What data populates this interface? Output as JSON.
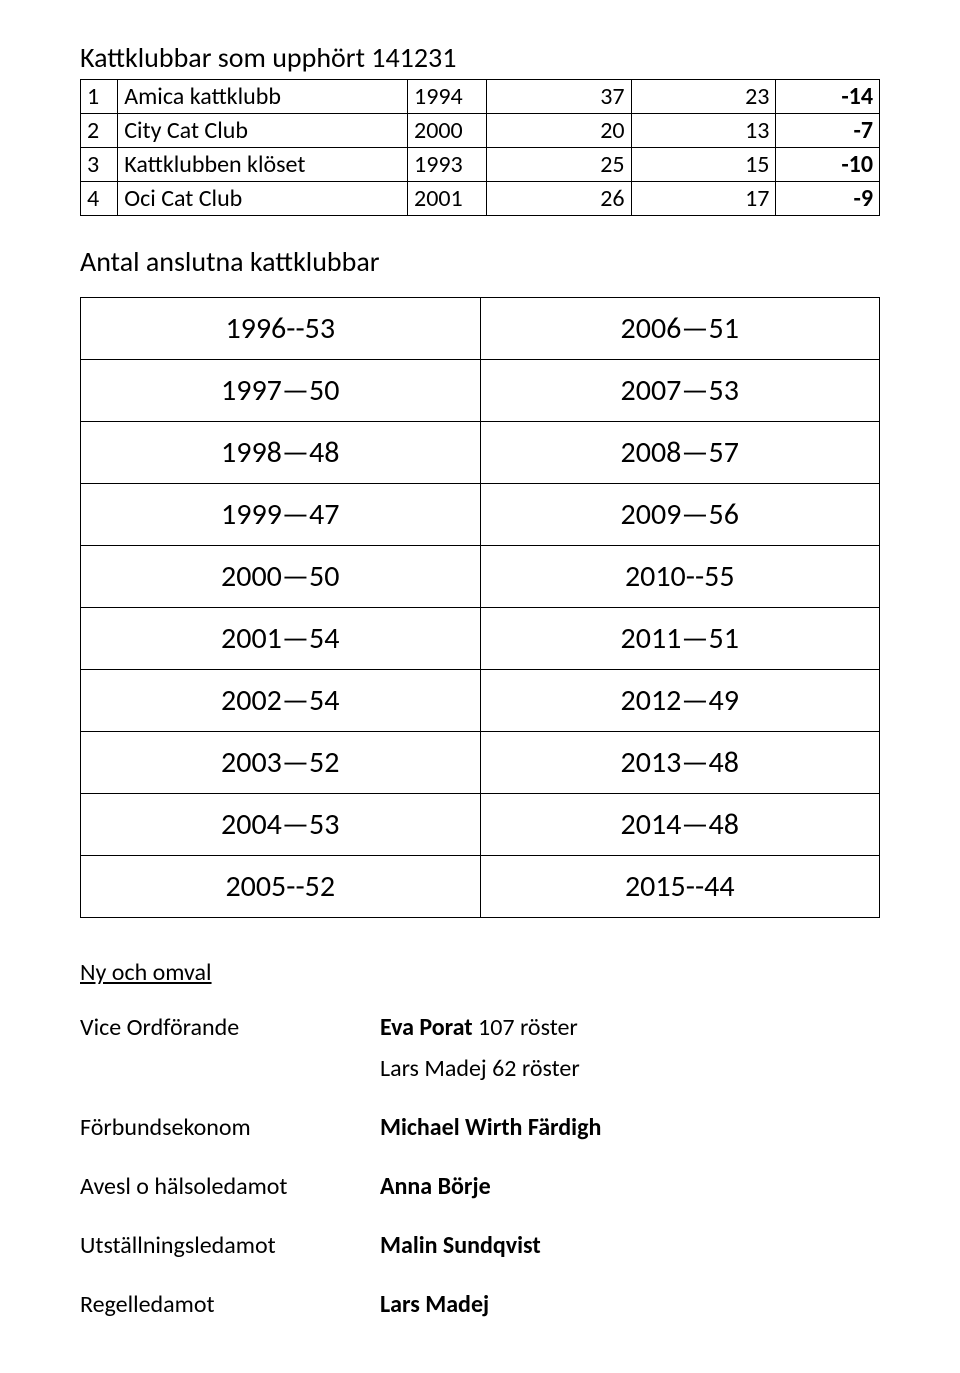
{
  "title": "Kattklubbar som upphört 141231",
  "discontinued": {
    "rows": [
      {
        "num": "1",
        "name": "Amica kattklubb",
        "year": "1994",
        "a": "37",
        "b": "23",
        "diff": "-14"
      },
      {
        "num": "2",
        "name": "City Cat Club",
        "year": "2000",
        "a": "20",
        "b": "13",
        "diff": "-7"
      },
      {
        "num": "3",
        "name": "Kattklubben klöset",
        "year": "1993",
        "a": "25",
        "b": "15",
        "diff": "-10"
      },
      {
        "num": "4",
        "name": "Oci Cat Club",
        "year": "2001",
        "a": "26",
        "b": "17",
        "diff": "-9"
      }
    ]
  },
  "subtitle": "Antal anslutna kattklubbar",
  "year_pairs": [
    {
      "left": "1996--53",
      "right": "2006—51"
    },
    {
      "left": "1997—50",
      "right": "2007—53"
    },
    {
      "left": "1998—48",
      "right": "2008—57"
    },
    {
      "left": "1999—47",
      "right": "2009—56"
    },
    {
      "left": "2000—50",
      "right": "2010--55"
    },
    {
      "left": "2001—54",
      "right": "2011—51"
    },
    {
      "left": "2002—54",
      "right": "2012—49"
    },
    {
      "left": "2003—52",
      "right": "2013—48"
    },
    {
      "left": "2004—53",
      "right": "2014—48"
    },
    {
      "left": "2005--52",
      "right": "2015--44"
    }
  ],
  "ny_och_omval": {
    "header": "Ny och omval",
    "roles": [
      {
        "role": "Vice Ordförande",
        "lines": [
          {
            "bold_part": "Eva Porat",
            "rest": " 107 röster"
          },
          {
            "bold_part": "",
            "rest": "Lars Madej 62 röster"
          }
        ]
      },
      {
        "role": "Förbundsekonom",
        "lines": [
          {
            "bold_part": "Michael Wirth Färdigh",
            "rest": ""
          }
        ]
      },
      {
        "role": "Avesl o hälsoledamot",
        "lines": [
          {
            "bold_part": "Anna Börje",
            "rest": ""
          }
        ]
      },
      {
        "role": "Utställningsledamot",
        "lines": [
          {
            "bold_part": "Malin Sundqvist",
            "rest": ""
          }
        ]
      },
      {
        "role": "Regelledamot",
        "lines": [
          {
            "bold_part": "Lars Madej",
            "rest": ""
          }
        ]
      }
    ]
  }
}
